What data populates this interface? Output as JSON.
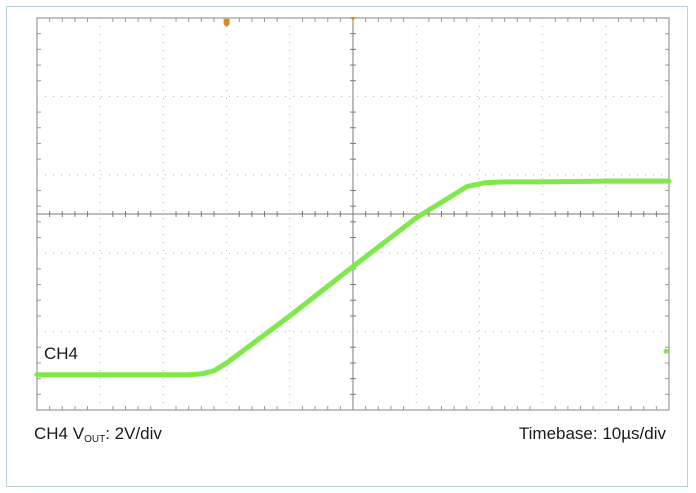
{
  "colors": {
    "trace": "#7fe84a",
    "grid": "#9a9a9a",
    "marker": "#e08a1e",
    "background": "#ffffff",
    "text": "#1a1a1a"
  },
  "captions": {
    "channel_prefix": "CH4 V",
    "channel_sub": "OUT",
    "channel_suffix": ": 2V/div",
    "timebase": "Timebase: 10µs/div"
  },
  "chart_data": {
    "type": "line",
    "title": "",
    "xlabel": "",
    "ylabel": "",
    "x_unit": "div",
    "y_unit": "div",
    "xlim": [
      -5,
      5
    ],
    "ylim": [
      -2.5,
      2.5
    ],
    "grid": true,
    "divisions": {
      "x": 10,
      "y": 5
    },
    "trigger_marker": {
      "x": -2.0
    },
    "center_marker": {
      "x": 0.0
    },
    "series": [
      {
        "label": "CH4",
        "x": [
          -5.0,
          -2.6,
          -2.4,
          -2.2,
          -2.0,
          -1.0,
          0.0,
          1.0,
          1.8,
          2.1,
          2.4,
          3.0,
          4.0,
          5.0
        ],
        "y": [
          -2.05,
          -2.05,
          -2.04,
          -2.0,
          -1.9,
          -1.3,
          -0.67,
          -0.05,
          0.35,
          0.4,
          0.41,
          0.41,
          0.42,
          0.42
        ]
      }
    ],
    "right_marker": {
      "y": -1.75
    }
  }
}
